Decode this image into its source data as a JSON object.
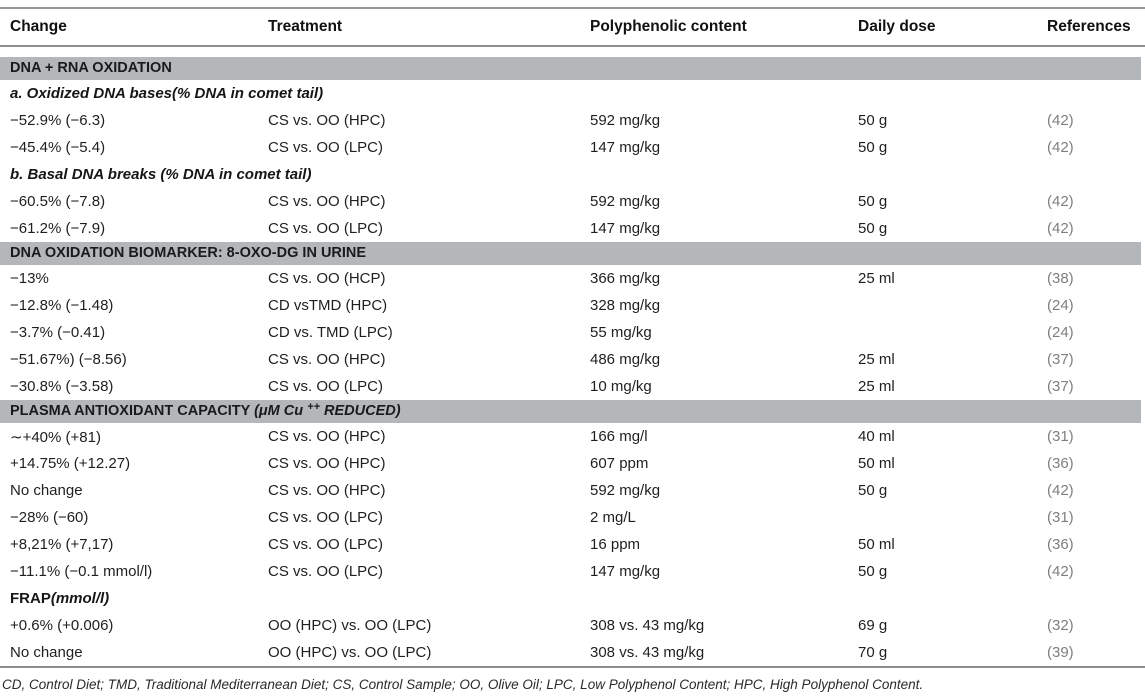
{
  "colors": {
    "band_background": "#b4b7ba",
    "rule": "#8e8e8e",
    "reference_text": "#7f7f7f",
    "body_text": "#1f1f1f"
  },
  "table": {
    "columns": {
      "change": "Change",
      "treatment": "Treatment",
      "polyphenolic": "Polyphenolic content",
      "dose": "Daily dose",
      "references": "References"
    },
    "rows": [
      {
        "type": "band",
        "label": "DNA + RNA OXIDATION"
      },
      {
        "type": "sub",
        "label": "a. Oxidized DNA bases(% DNA in comet tail)"
      },
      {
        "type": "data",
        "change": "−52.9% (−6.3)",
        "treatment": "CS vs. OO (HPC)",
        "polyphenolic": "592 mg/kg",
        "dose": "50 g",
        "ref": "(42)"
      },
      {
        "type": "data",
        "change": "−45.4% (−5.4)",
        "treatment": "CS vs. OO (LPC)",
        "polyphenolic": "147 mg/kg",
        "dose": "50 g",
        "ref": "(42)"
      },
      {
        "type": "sub",
        "label": "b. Basal DNA breaks (% DNA in comet tail)"
      },
      {
        "type": "data",
        "change": "−60.5% (−7.8)",
        "treatment": "CS vs. OO (HPC)",
        "polyphenolic": "592 mg/kg",
        "dose": "50 g",
        "ref": "(42)"
      },
      {
        "type": "data",
        "change": "−61.2% (−7.9)",
        "treatment": "CS vs. OO (LPC)",
        "polyphenolic": "147 mg/kg",
        "dose": "50 g",
        "ref": "(42)"
      },
      {
        "type": "band",
        "label": "DNA OXIDATION BIOMARKER: 8-OXO-DG IN URINE"
      },
      {
        "type": "data",
        "change": "−13%",
        "treatment": "CS vs. OO (HCP)",
        "polyphenolic": "366 mg/kg",
        "dose": "25 ml",
        "ref": "(38)"
      },
      {
        "type": "data",
        "change": "−12.8% (−1.48)",
        "treatment": "CD vsTMD (HPC)",
        "polyphenolic": "328 mg/kg",
        "dose": "",
        "ref": "(24)"
      },
      {
        "type": "data",
        "change": "−3.7% (−0.41)",
        "treatment": "CD vs. TMD (LPC)",
        "polyphenolic": "55 mg/kg",
        "dose": "",
        "ref": "(24)"
      },
      {
        "type": "data",
        "change": "−51.67%) (−8.56)",
        "treatment": "CS vs. OO (HPC)",
        "polyphenolic": "486 mg/kg",
        "dose": "25 ml",
        "ref": "(37)"
      },
      {
        "type": "data",
        "change": "−30.8% (−3.58)",
        "treatment": "CS vs. OO (LPC)",
        "polyphenolic": "10 mg/kg",
        "dose": "25 ml",
        "ref": "(37)"
      },
      {
        "type": "band",
        "label": "PLASMA ANTIOXIDANT CAPACITY ",
        "label_italic_1": "(μM Cu",
        "label_sup": "++",
        "label_italic_2": " REDUCED)"
      },
      {
        "type": "data",
        "change": "∼+40% (+81)",
        "treatment": "CS vs. OO (HPC)",
        "polyphenolic": "166 mg/l",
        "dose": "40 ml",
        "ref": "(31)"
      },
      {
        "type": "data",
        "change": "+14.75% (+12.27)",
        "treatment": "CS vs. OO (HPC)",
        "polyphenolic": "607 ppm",
        "dose": "50 ml",
        "ref": "(36)"
      },
      {
        "type": "data",
        "change": "No change",
        "treatment": "CS vs. OO (HPC)",
        "polyphenolic": "592 mg/kg",
        "dose": "50 g",
        "ref": "(42)"
      },
      {
        "type": "data",
        "change": "−28% (−60)",
        "treatment": "CS vs. OO (LPC)",
        "polyphenolic": "2 mg/L",
        "dose": "",
        "ref": "(31)"
      },
      {
        "type": "data",
        "change": "+8,21% (+7,17)",
        "treatment": "CS vs. OO (LPC)",
        "polyphenolic": "16 ppm",
        "dose": "50 ml",
        "ref": "(36)"
      },
      {
        "type": "data",
        "change": "−11.1% (−0.1 mmol/l)",
        "treatment": "CS vs. OO (LPC)",
        "polyphenolic": "147 mg/kg",
        "dose": "50 g",
        "ref": "(42)"
      },
      {
        "type": "sub",
        "label": "FRAP",
        "label_italic": "(mmol/l)"
      },
      {
        "type": "data",
        "change": "+0.6% (+0.006)",
        "treatment": "OO (HPC) vs. OO (LPC)",
        "polyphenolic": "308 vs. 43 mg/kg",
        "dose": "69 g",
        "ref": "(32)"
      },
      {
        "type": "data",
        "change": "No change",
        "treatment": "OO (HPC) vs. OO (LPC)",
        "polyphenolic": "308 vs. 43 mg/kg",
        "dose": "70 g",
        "ref": "(39)"
      }
    ]
  },
  "footnote": "CD, Control Diet; TMD, Traditional Mediterranean Diet; CS, Control Sample; OO, Olive Oil; LPC, Low Polyphenol Content; HPC, High Polyphenol Content."
}
